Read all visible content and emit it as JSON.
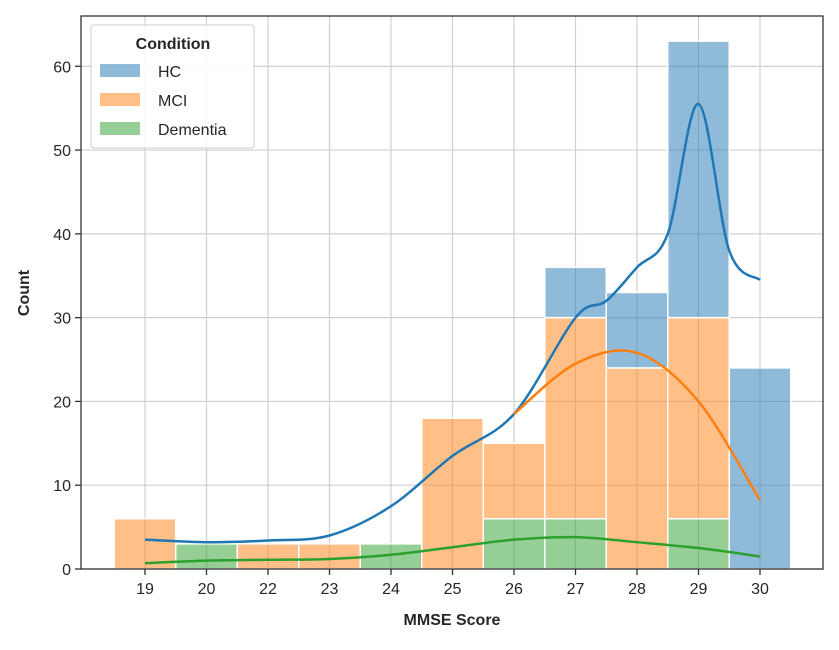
{
  "chart_data": {
    "type": "bar",
    "stacked": true,
    "title": "",
    "xlabel": "MMSE Score",
    "ylabel": "Count",
    "categories": [
      "19",
      "20",
      "22",
      "23",
      "24",
      "25",
      "26",
      "27",
      "28",
      "29",
      "30"
    ],
    "ylim": [
      0,
      66
    ],
    "yticks": [
      0,
      10,
      20,
      30,
      40,
      50,
      60
    ],
    "grid": true,
    "legend": {
      "title": "Condition",
      "placement": "top-left"
    },
    "series": [
      {
        "name": "Dementia",
        "color": "#2ca02c",
        "values": [
          0,
          3,
          0,
          0,
          3,
          0,
          6,
          6,
          0,
          6,
          0
        ]
      },
      {
        "name": "MCI",
        "color": "#ff7f0e",
        "values": [
          6,
          0,
          3,
          3,
          0,
          18,
          9,
          24,
          24,
          24,
          0
        ]
      },
      {
        "name": "HC",
        "color": "#1f77b4",
        "values": [
          0,
          0,
          0,
          0,
          0,
          0,
          0,
          6,
          9,
          33,
          24
        ]
      }
    ],
    "kde": [
      {
        "name": "HC",
        "color": "#1f77b4",
        "x": [
          19,
          20,
          22,
          23,
          24,
          25,
          26,
          27,
          27.5,
          28,
          28.5,
          29,
          29.5,
          30
        ],
        "y": [
          3.5,
          3.2,
          3.4,
          4,
          7.5,
          13.5,
          18.5,
          30,
          32,
          36,
          40,
          55.5,
          38,
          34.5
        ]
      },
      {
        "name": "MCI",
        "color": "#ff7f0e",
        "x": [
          26,
          27,
          28,
          29,
          30
        ],
        "y": [
          18.5,
          24.5,
          25.8,
          20,
          8.2
        ]
      },
      {
        "name": "Dementia",
        "color": "#2ca02c",
        "x": [
          19,
          20,
          22,
          23,
          24,
          25,
          26,
          27,
          28,
          29,
          30
        ],
        "y": [
          0.7,
          1,
          1.1,
          1.2,
          1.7,
          2.6,
          3.5,
          3.8,
          3.2,
          2.5,
          1.5
        ]
      }
    ]
  }
}
